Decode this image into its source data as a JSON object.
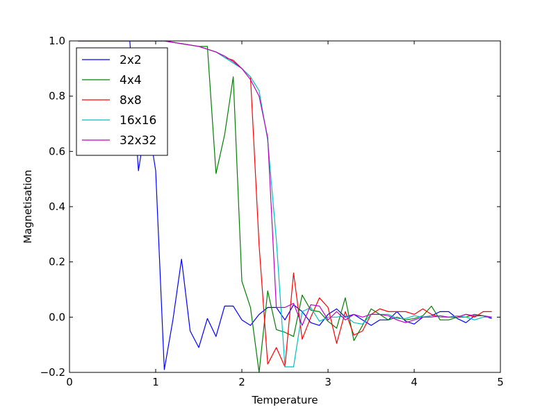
{
  "chart_data": {
    "type": "line",
    "title": "",
    "xlabel": "Temperature",
    "ylabel": "Magnetisation",
    "xlim": [
      0,
      5
    ],
    "ylim": [
      -0.2,
      1.0
    ],
    "xticks": [
      0,
      1,
      2,
      3,
      4,
      5
    ],
    "yticks": [
      -0.2,
      0.0,
      0.2,
      0.4,
      0.6,
      0.8,
      1.0
    ],
    "xtick_labels": [
      "0",
      "1",
      "2",
      "3",
      "4",
      "5"
    ],
    "ytick_labels": [
      "−0.2",
      "0.0",
      "0.2",
      "0.4",
      "0.6",
      "0.8",
      "1.0"
    ],
    "grid": false,
    "legend_position": "top-left",
    "x": [
      0.1,
      0.2,
      0.3,
      0.4,
      0.5,
      0.6,
      0.7,
      0.8,
      0.9,
      1.0,
      1.1,
      1.2,
      1.3,
      1.4,
      1.5,
      1.6,
      1.7,
      1.8,
      1.9,
      2.0,
      2.1,
      2.2,
      2.3,
      2.4,
      2.5,
      2.6,
      2.7,
      2.8,
      2.9,
      3.0,
      3.1,
      3.2,
      3.3,
      3.4,
      3.5,
      3.6,
      3.7,
      3.8,
      3.9,
      4.0,
      4.1,
      4.2,
      4.3,
      4.4,
      4.5,
      4.6,
      4.7,
      4.8,
      4.9
    ],
    "series": [
      {
        "name": "2x2",
        "color": "#0000ff",
        "values": [
          1.0,
          1.0,
          1.0,
          1.0,
          1.0,
          1.0,
          1.0,
          0.53,
          0.73,
          0.53,
          -0.19,
          -0.01,
          0.21,
          -0.05,
          -0.11,
          -0.005,
          -0.07,
          0.04,
          0.04,
          -0.01,
          -0.03,
          0.01,
          0.035,
          0.035,
          -0.01,
          0.045,
          0.02,
          -0.02,
          -0.03,
          0.01,
          0.03,
          0.0,
          0.01,
          -0.01,
          -0.03,
          -0.01,
          -0.01,
          0.02,
          -0.015,
          -0.025,
          0.0,
          0.005,
          0.02,
          0.02,
          -0.005,
          -0.02,
          0.005,
          0.005,
          -0.005
        ]
      },
      {
        "name": "4x4",
        "color": "#008000",
        "values": [
          1.0,
          1.0,
          1.0,
          1.0,
          1.0,
          1.0,
          1.0,
          1.0,
          1.0,
          1.0,
          1.0,
          0.995,
          0.99,
          0.985,
          0.98,
          0.98,
          0.52,
          0.66,
          0.87,
          0.13,
          0.035,
          -0.2,
          0.095,
          -0.045,
          -0.055,
          -0.07,
          0.08,
          0.025,
          0.02,
          -0.015,
          -0.04,
          0.07,
          -0.085,
          -0.03,
          0.03,
          0.01,
          -0.01,
          0.0,
          -0.01,
          -0.005,
          0.005,
          0.04,
          -0.01,
          -0.01,
          0.0,
          0.0,
          0.01,
          0.005,
          0.0
        ]
      },
      {
        "name": "8x8",
        "color": "#ff0000",
        "values": [
          1.0,
          1.0,
          1.0,
          1.0,
          1.0,
          1.0,
          1.0,
          1.0,
          1.0,
          1.0,
          1.0,
          0.995,
          0.99,
          0.985,
          0.98,
          0.97,
          0.96,
          0.94,
          0.93,
          0.9,
          0.87,
          0.26,
          -0.17,
          -0.11,
          -0.18,
          0.16,
          -0.08,
          0.0,
          0.07,
          0.035,
          -0.095,
          0.02,
          -0.065,
          -0.05,
          0.01,
          0.03,
          0.02,
          0.02,
          0.02,
          0.01,
          0.03,
          0.01,
          0.0,
          0.0,
          0.0,
          0.01,
          0.0,
          0.02,
          0.02
        ]
      },
      {
        "name": "16x16",
        "color": "#00bfbf",
        "values": [
          1.0,
          1.0,
          1.0,
          1.0,
          1.0,
          1.0,
          1.0,
          1.0,
          1.0,
          1.0,
          1.0,
          0.995,
          0.99,
          0.985,
          0.98,
          0.97,
          0.96,
          0.94,
          0.92,
          0.9,
          0.87,
          0.82,
          0.64,
          0.28,
          -0.18,
          -0.18,
          0.02,
          0.035,
          -0.015,
          0.0,
          0.0,
          0.005,
          -0.02,
          -0.025,
          0.01,
          0.01,
          0.01,
          -0.005,
          -0.005,
          0.005,
          0.0,
          0.005,
          0.0,
          0.0,
          0.005,
          0.0,
          -0.01,
          0.0,
          0.0
        ]
      },
      {
        "name": "32x32",
        "color": "#bf00bf",
        "values": [
          1.0,
          1.0,
          1.0,
          1.0,
          1.0,
          1.0,
          1.0,
          1.0,
          1.0,
          1.0,
          1.0,
          0.995,
          0.99,
          0.985,
          0.98,
          0.97,
          0.96,
          0.945,
          0.925,
          0.9,
          0.86,
          0.8,
          0.65,
          0.035,
          0.035,
          0.05,
          -0.03,
          0.045,
          0.04,
          -0.01,
          0.02,
          -0.01,
          0.01,
          0.0,
          0.01,
          0.01,
          0.005,
          -0.01,
          -0.02,
          -0.01,
          0.0,
          0.0,
          0.005,
          0.0,
          0.0,
          0.01,
          0.005,
          0.005,
          0.0
        ]
      }
    ]
  }
}
